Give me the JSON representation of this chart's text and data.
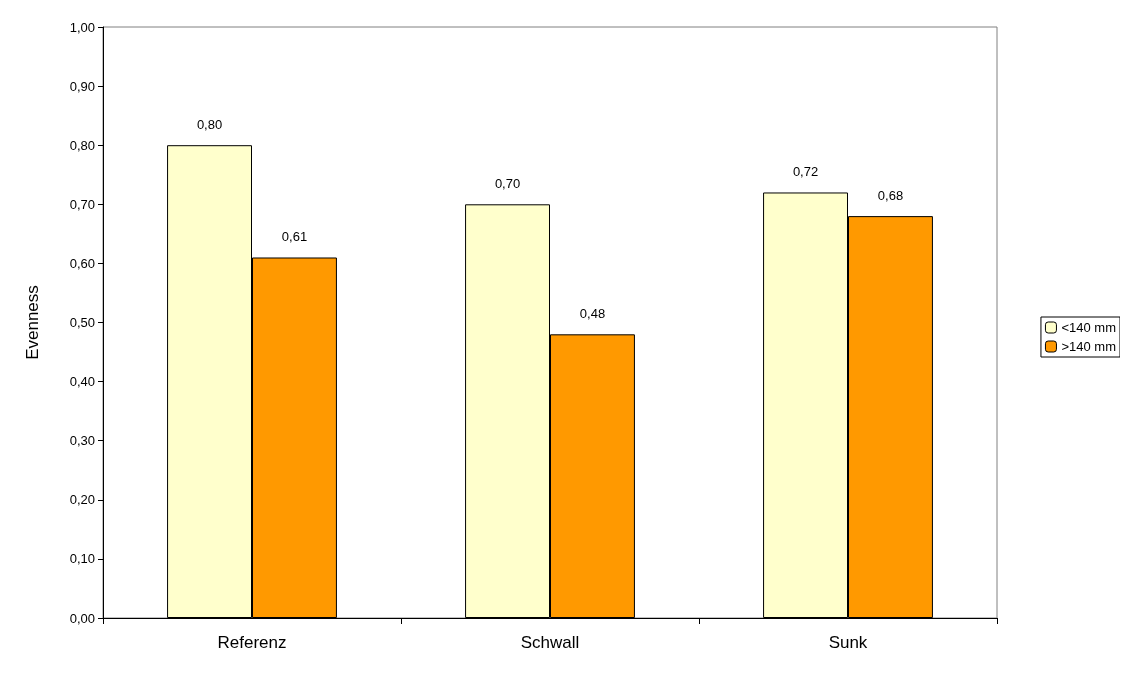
{
  "chart_data": {
    "type": "bar",
    "ylabel": "Evenness",
    "categories": [
      "Referenz",
      "Schwall",
      "Sunk"
    ],
    "series": [
      {
        "name": "<140 mm",
        "color": "#ffffcc",
        "values": [
          0.8,
          0.7,
          0.72
        ],
        "value_labels": [
          "0,80",
          "0,70",
          "0,72"
        ]
      },
      {
        "name": ">140 mm",
        "color": "#ff9900",
        "values": [
          0.61,
          0.48,
          0.68
        ],
        "value_labels": [
          "0,61",
          "0,48",
          "0,68"
        ]
      }
    ],
    "ylim": [
      0,
      1
    ],
    "yticks": [
      {
        "value": 0,
        "label": "0,00"
      },
      {
        "value": 0.1,
        "label": "0,10"
      },
      {
        "value": 0.2,
        "label": "0,20"
      },
      {
        "value": 0.3,
        "label": "0,30"
      },
      {
        "value": 0.4,
        "label": "0,40"
      },
      {
        "value": 0.5,
        "label": "0,50"
      },
      {
        "value": 0.6,
        "label": "0,60"
      },
      {
        "value": 0.7,
        "label": "0,70"
      },
      {
        "value": 0.8,
        "label": "0,80"
      },
      {
        "value": 0.9,
        "label": "0,90"
      },
      {
        "value": 1,
        "label": "1,00"
      }
    ],
    "grid": false,
    "legend": "right"
  }
}
